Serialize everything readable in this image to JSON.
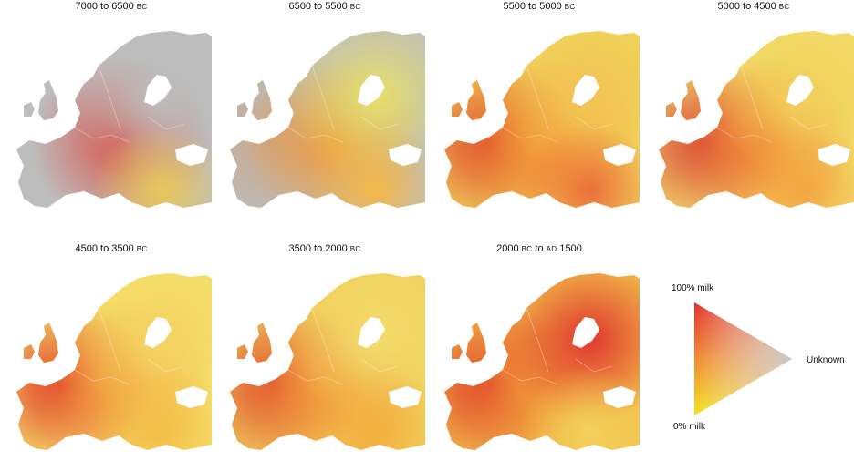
{
  "panels": [
    {
      "period_start": "7000 to 6500",
      "period_start_era": "",
      "period_end_era": "BC",
      "mid": "",
      "c1": "#bdbdbd",
      "c2": "#bdbdbd",
      "c3": "#d9534a",
      "c4": "#bdbdbd",
      "c5": "#e8c85a"
    },
    {
      "period_start": "6500 to 5500",
      "period_start_era": "",
      "period_end_era": "BC",
      "mid": "",
      "c1": "#bdbdbd",
      "c2": "#c9a78a",
      "c3": "#f09a3a",
      "c4": "#e6e06a",
      "c5": "#f3b94a"
    },
    {
      "period_start": "5500 to 5000",
      "period_start_era": "",
      "period_end_era": "BC",
      "mid": "",
      "c1": "#f0d45a",
      "c2": "#e0462e",
      "c3": "#f39a35",
      "c4": "#f2c455",
      "c5": "#ec6f3a"
    },
    {
      "period_start": "5000 to 4500",
      "period_start_era": "",
      "period_end_era": "BC",
      "mid": "",
      "c1": "#f2dc6a",
      "c2": "#d9433a",
      "c3": "#ef8132",
      "c4": "#f2d05a",
      "c5": "#f4a640"
    },
    {
      "period_start": "4500 to 3500",
      "period_start_era": "",
      "period_end_era": "BC",
      "mid": "",
      "c1": "#f4e06a",
      "c2": "#e0382a",
      "c3": "#f3a13e",
      "c4": "#f4d362",
      "c5": "#f3bf48"
    },
    {
      "period_start": "3500 to 2000",
      "period_start_era": "",
      "period_end_era": "BC",
      "mid": "",
      "c1": "#f0d05c",
      "c2": "#e04a2e",
      "c3": "#f39e3c",
      "c4": "#f2dc6c",
      "c5": "#f3b040"
    },
    {
      "period_start": "2000",
      "period_start_era": "BC",
      "period_end_era": "AD",
      "mid": " to ",
      "c1": "#f2c24a",
      "c2": "#e03a2a",
      "c3": "#f19a38",
      "c4": "#e0372f",
      "c5": "#f3d15c"
    }
  ],
  "panel_titles": [
    {
      "text": "7000 to 6500",
      "era": "BC"
    },
    {
      "text": "6500 to 5500",
      "era": "BC"
    },
    {
      "text": "5500 to 5000",
      "era": "BC"
    },
    {
      "text": "5000 to 4500",
      "era": "BC"
    },
    {
      "text": "4500 to 3500",
      "era": "BC"
    },
    {
      "text": "3500 to 2000",
      "era": "BC"
    },
    {
      "text": "2000",
      "era": "BC",
      "mid": " to ",
      "era2": "AD",
      "end": " 1500"
    }
  ],
  "legend": {
    "top_label": "100% milk",
    "bottom_label": "0% milk",
    "right_label": "Unknown",
    "colors": {
      "milk_100": "#e0302a",
      "milk_0": "#f2e21a",
      "unknown": "#c8c8c8"
    }
  },
  "colors": {
    "land_grey": "#bdbdbd",
    "sea": "#ffffff"
  }
}
